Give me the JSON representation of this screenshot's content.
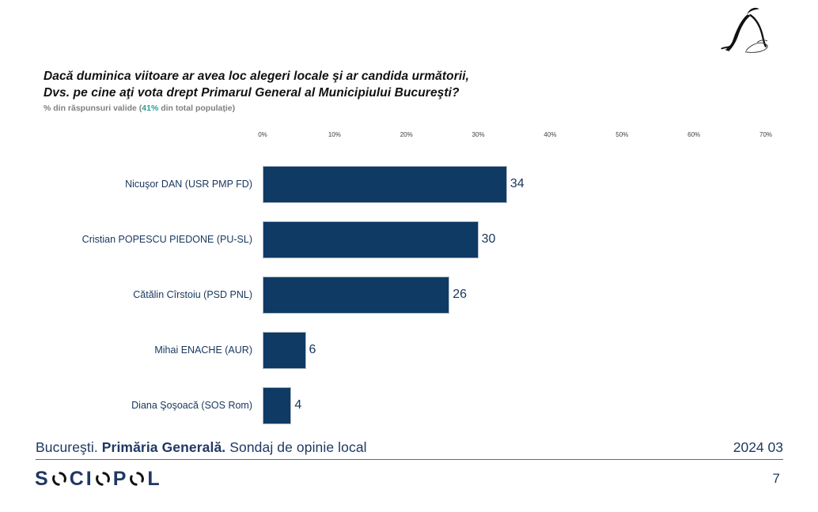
{
  "title": {
    "line1": "Dacă duminica viitoare ar avea loc alegeri locale şi ar candida următorii,",
    "line2": "Dvs. pe cine aţi vota drept Primarul General al Municipiului Bucureşti?"
  },
  "subtitle": {
    "prefix": "% din răspunsuri valide (",
    "highlight": "41%",
    "suffix": " din total populaţie)"
  },
  "chart_data": {
    "type": "bar",
    "orientation": "horizontal",
    "categories": [
      "Nicuşor DAN (USR PMP FD)",
      "Cristian POPESCU PIEDONE (PU-SL)",
      "Cătălin Cîrstoiu (PSD PNL)",
      "Mihai ENACHE (AUR)",
      "Diana Şoşoacă (SOS Rom)"
    ],
    "values": [
      34,
      30,
      26,
      6,
      4
    ],
    "x_ticks": [
      "0%",
      "10%",
      "20%",
      "30%",
      "40%",
      "50%",
      "60%",
      "70%"
    ],
    "xlim": [
      0,
      70
    ],
    "bar_color": "#0E3A64",
    "value_label_color": "#17365D",
    "grid": false,
    "legend": "none"
  },
  "footer": {
    "location": "Bucureşti. ",
    "bold": "Primăria Generală.",
    "rest": " Sondaj de opinie local",
    "date": "2024 03",
    "page": "7",
    "brand_letters": [
      "S",
      "O",
      "C",
      "I",
      "O",
      "P",
      "O",
      "L"
    ]
  },
  "colors": {
    "accent_navy": "#1F3864",
    "bar_navy": "#0E3A64",
    "teal": "#2B9E98",
    "divider_teal": "#2C7F87",
    "subtitle_gray": "#808080"
  },
  "icons": {
    "penguin_logo": "penguin-ink-logo",
    "sociopol_o": "circular-arrow-o"
  }
}
